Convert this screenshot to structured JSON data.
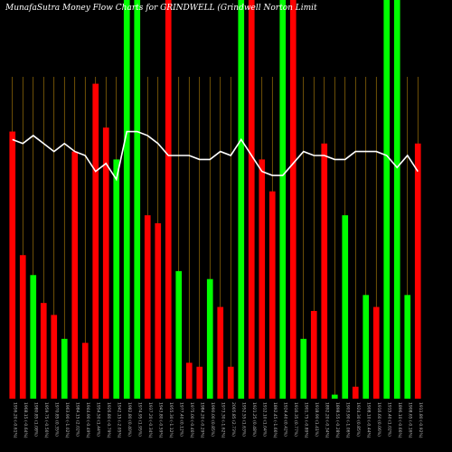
{
  "title": "MunafaSutra  Money  Flow  Charts  for  GRINDWELL            (Grindwell  Norton  Limit",
  "chart_data": {
    "type": "bar",
    "title": "MunafaSutra  Money  Flow  Charts  for  GRINDWELL            (Grindwell  Norton  Limit",
    "xlabel": "",
    "ylabel": "",
    "ylim": [
      0,
      100
    ],
    "grid": "vertical",
    "colors": {
      "up": "#00ff00",
      "down": "#ff0000",
      "line": "#ffffff",
      "grid": "#b8860b",
      "background": "#000000"
    },
    "categories": [
      "1956.20 (-0.61%) 15 Fri Dec 2023",
      "1968.15 (-0.64%) 14 Thu Dec 2023",
      "1980.85 (1.08%) 13 Wed Dec 2023",
      "1959.75 (-0.56%) 12 Tue Dec 2023",
      "1970.85 (0.35%) 11 Mon Dec 2023",
      "1963.90 (-1.02%) 08 Fri Dec 2023",
      "1984.15 (2.02%) 07 Thu Dec 2023",
      "1944.90 (-0.49%) 06 Wed Dec 2023",
      "1954.50 (1.44%) 05 Tue Dec 2023",
      "1926.80 (-0.79%) 04 Mon Dec 2023",
      "1942.15 (-2.05%) 01 Fri Dec 2023",
      "1982.80 (0.40%) 30 Thu Nov 2023",
      "1974.95 (1.95%) 29 Wed Nov 2023",
      "1937.20 (-0.34%) 28 Tue Nov 2023",
      "1943.80 (-0.59%) 24 Fri Nov 2023",
      "1955.30 (-1.12%) 23 Thu Nov 2023",
      "1977.40 (0.12%) 22 Wed Nov 2023",
      "1975.00 (-0.46%) 21 Tue Nov 2023",
      "1984.20 (-0.29%) 20 Mon Nov 2023",
      "1990.00 (0.85%) 17 Fri Nov 2023",
      "1973.30 (-1.62%) 16 Thu Nov 2023",
      "2005.85 (2.73%) 15 Wed Nov 2023",
      "1952.55 (1.63%) 13 Mon Nov 2023",
      "1921.25 (0.48%) 12 Sun Nov 2023",
      "1912.10 (1.04%) 10 Fri Nov 2023",
      "1892.45 (-1.66%) 09 Thu Nov 2023",
      "1924.40 (0.42%) 08 Wed Nov 2023",
      "1916.35 (0.77%) 07 Tue Nov 2023",
      "1901.75 (-0.89%) 06 Mon Nov 2023",
      "1918.90 (1.41%) 03 Fri Nov 2023",
      "1892.20 (-0.34%) 02 Thu Nov 2023",
      "1898.55 (-0.28%) 01 Wed Nov 2023",
      "1903.90 (-1.06%) 31 Tue Oct 2023",
      "1924.30 (0.85%) 30 Mon Oct 2023",
      "1908.10 (-0.44%) 27 Fri Oct 2023",
      "1916.60 (0.06%) 26 Thu Oct 2023",
      "1915.40 (1.02%) 25 Wed Oct 2023",
      "1896.10 (-0.66%) 23 Mon Oct 2023",
      "1908.65 (-0.16%) 20 Fri Oct 2023",
      "1911.80 (-0.92%) 19 Thu Oct 2023"
    ],
    "series": [
      {
        "name": "money flow",
        "values": [
          67,
          36,
          31,
          24,
          21,
          15,
          62,
          14,
          79,
          68,
          60,
          100,
          100,
          46,
          44,
          100,
          32,
          9,
          8,
          30,
          23,
          8,
          100,
          100,
          60,
          52,
          100,
          100,
          15,
          22,
          64,
          1,
          46,
          3,
          26,
          23,
          100,
          100,
          26,
          64
        ],
        "colors": [
          "down",
          "down",
          "up",
          "down",
          "down",
          "up",
          "down",
          "down",
          "down",
          "down",
          "up",
          "up",
          "up",
          "down",
          "down",
          "down",
          "up",
          "down",
          "down",
          "up",
          "down",
          "down",
          "up",
          "down",
          "down",
          "down",
          "up",
          "down",
          "up",
          "down",
          "down",
          "up",
          "up",
          "down",
          "up",
          "down",
          "up",
          "up",
          "up",
          "down"
        ]
      },
      {
        "name": "price line",
        "values": [
          65,
          64,
          66,
          64,
          62,
          64,
          62,
          61,
          57,
          59,
          55,
          67,
          67,
          66,
          64,
          61,
          61,
          61,
          60,
          60,
          62,
          61,
          65,
          61,
          57,
          56,
          56,
          59,
          62,
          61,
          61,
          60,
          60,
          62,
          62,
          62,
          61,
          58,
          61,
          57
        ]
      }
    ],
    "x_tick_labels": [
      "1956.20 (-0.61%)",
      "1968.15 (-0.64%)",
      "1980.85 (1.08%)",
      "1959.75 (-0.56%)",
      "1970.85 (0.35%)",
      "1963.90 (-1.02%)",
      "1984.15 (2.02%)",
      "1944.90 (-0.49%)",
      "1954.50 (1.44%)",
      "1926.80 (-0.79%)",
      "1942.15 (-2.05%)",
      "1982.80 (0.40%)",
      "1974.95 (1.95%)",
      "1937.20 (-0.34%)",
      "1943.80 (-0.59%)",
      "1955.30 (-1.12%)",
      "1977.40 (0.12%)",
      "1975.00 (-0.46%)",
      "1984.20 (-0.29%)",
      "1990.00 (0.85%)",
      "1973.30 (-1.62%)",
      "2005.85 (2.73%)",
      "1952.55 (1.63%)",
      "1921.25 (0.48%)",
      "1912.10 (1.04%)",
      "1892.45 (-1.66%)",
      "1924.40 (0.42%)",
      "1916.35 (0.77%)",
      "1901.75 (-0.89%)",
      "1918.90 (1.41%)",
      "1892.20 (-0.34%)",
      "1898.55 (-0.28%)",
      "1903.90 (-1.06%)",
      "1924.30 (0.85%)",
      "1908.10 (-0.44%)",
      "1916.60 (0.06%)",
      "1915.40 (1.02%)",
      "1896.10 (-0.66%)",
      "1908.65 (-0.16%)",
      "1911.80 (-0.92%)"
    ]
  }
}
